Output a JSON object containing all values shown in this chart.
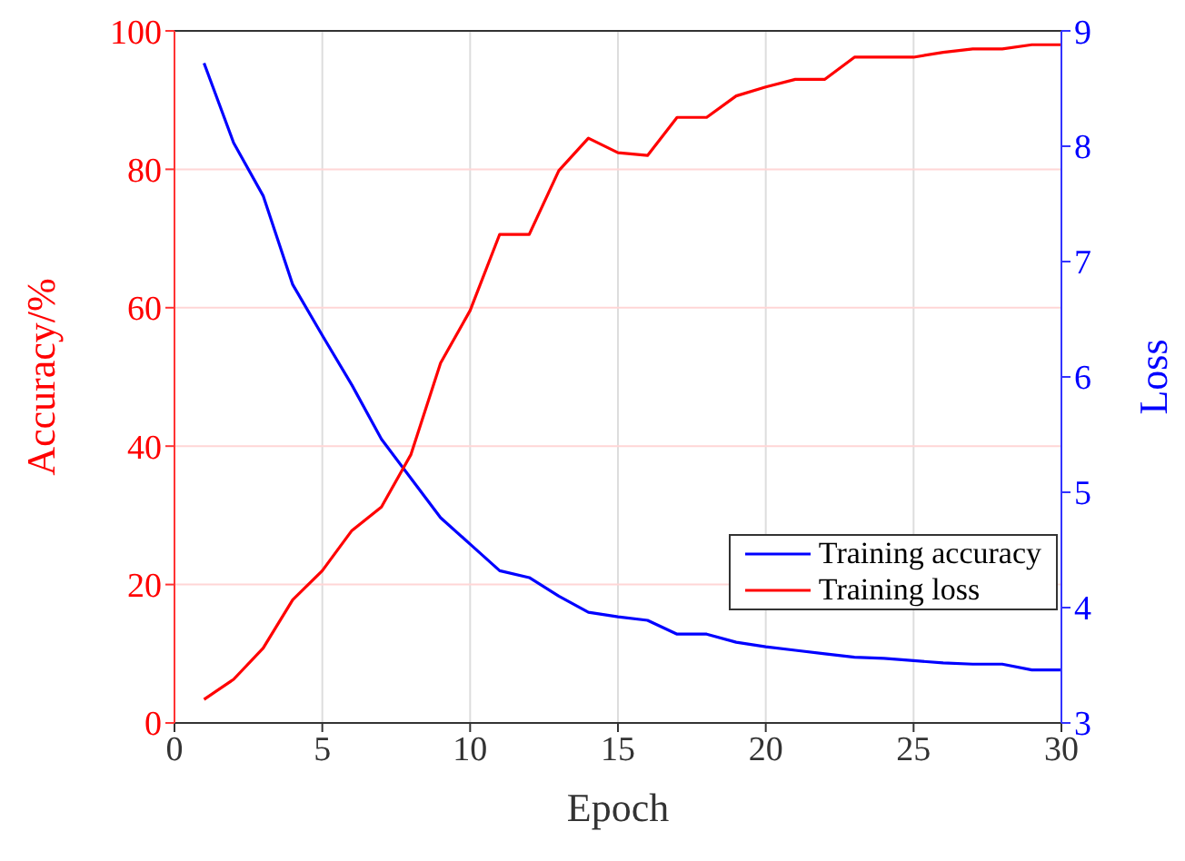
{
  "chart_data": {
    "type": "line",
    "xlabel": "Epoch",
    "ylabel": "Accuracy/%",
    "y2label": "Loss",
    "x": [
      1,
      2,
      3,
      4,
      5,
      6,
      7,
      8,
      9,
      10,
      11,
      12,
      13,
      14,
      15,
      16,
      17,
      18,
      19,
      20,
      21,
      22,
      23,
      24,
      25,
      26,
      27,
      28,
      29,
      30
    ],
    "series": [
      {
        "name": "Training accuracy",
        "color": "#0000ff",
        "axis": "y2",
        "values": [
          8.72,
          8.03,
          7.57,
          6.8,
          6.36,
          5.93,
          5.46,
          5.12,
          4.78,
          4.55,
          4.32,
          4.26,
          4.1,
          3.96,
          3.92,
          3.89,
          3.77,
          3.77,
          3.7,
          3.66,
          3.63,
          3.6,
          3.57,
          3.56,
          3.54,
          3.52,
          3.51,
          3.51,
          3.46,
          3.46
        ]
      },
      {
        "name": "Training loss",
        "color": "#ff0000",
        "values": [
          3.4,
          6.3,
          10.8,
          17.8,
          22,
          27.8,
          31.2,
          38.8,
          52,
          59.6,
          70.6,
          70.6,
          79.8,
          84.5,
          82.4,
          82,
          87.5,
          87.5,
          90.6,
          91.9,
          93,
          93,
          96.2,
          96.2,
          96.2,
          96.9,
          97.4,
          97.4,
          98,
          98
        ]
      }
    ],
    "xlim": [
      0,
      30
    ],
    "xticks": [
      0,
      5,
      10,
      15,
      20,
      25,
      30
    ],
    "ylim": [
      0,
      100
    ],
    "yticks": [
      0,
      20,
      40,
      60,
      80,
      100
    ],
    "y2lim": [
      3,
      9
    ],
    "y2ticks": [
      3,
      4,
      5,
      6,
      7,
      8,
      9
    ],
    "grid": true,
    "legend": "bottom right",
    "marker": "none",
    "line_style": "solid"
  }
}
